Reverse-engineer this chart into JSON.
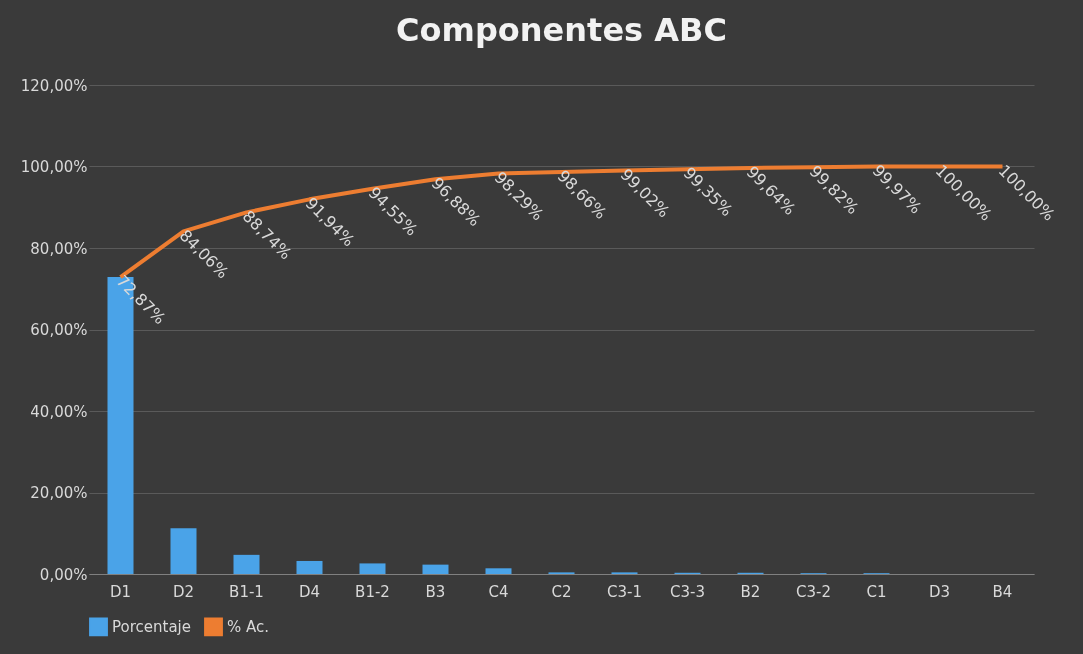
{
  "chart_data": {
    "type": "bar",
    "title": "Componentes ABC",
    "categories": [
      "D1",
      "D2",
      "B1-1",
      "D4",
      "B1-2",
      "B3",
      "C4",
      "C2",
      "C3-1",
      "C3-3",
      "B2",
      "C3-2",
      "C1",
      "D3",
      "B4"
    ],
    "series": [
      {
        "name": "Porcentaje",
        "color": "#4aa3e8",
        "values": [
          72.9,
          11.2,
          4.7,
          3.2,
          2.6,
          2.3,
          1.4,
          0.4,
          0.4,
          0.3,
          0.3,
          0.2,
          0.2,
          0.0,
          0.0
        ]
      },
      {
        "name": "% Ac.",
        "type": "line",
        "color": "#ed7d31",
        "values": [
          72.87,
          84.06,
          88.74,
          91.94,
          94.55,
          96.88,
          98.29,
          98.66,
          99.02,
          99.35,
          99.64,
          99.82,
          99.97,
          100.0,
          100.0
        ],
        "value_labels": [
          "72,87%",
          "84,06%",
          "88,74%",
          "91,94%",
          "94,55%",
          "96,88%",
          "98,29%",
          "98,66%",
          "99,02%",
          "99,35%",
          "99,64%",
          "99,82%",
          "99,97%",
          "100,00%",
          "100,00%"
        ]
      }
    ],
    "ylim": [
      0,
      120
    ],
    "yticks": [
      {
        "value": 0,
        "label": "0,00%"
      },
      {
        "value": 20,
        "label": "20,00%"
      },
      {
        "value": 40,
        "label": "40,00%"
      },
      {
        "value": 60,
        "label": "60,00%"
      },
      {
        "value": 80,
        "label": "80,00%"
      },
      {
        "value": 100,
        "label": "100,00%"
      },
      {
        "value": 120,
        "label": "120,00%"
      }
    ],
    "grid": "y",
    "legend": "bottom",
    "marker": "none",
    "line_style": "solid"
  }
}
